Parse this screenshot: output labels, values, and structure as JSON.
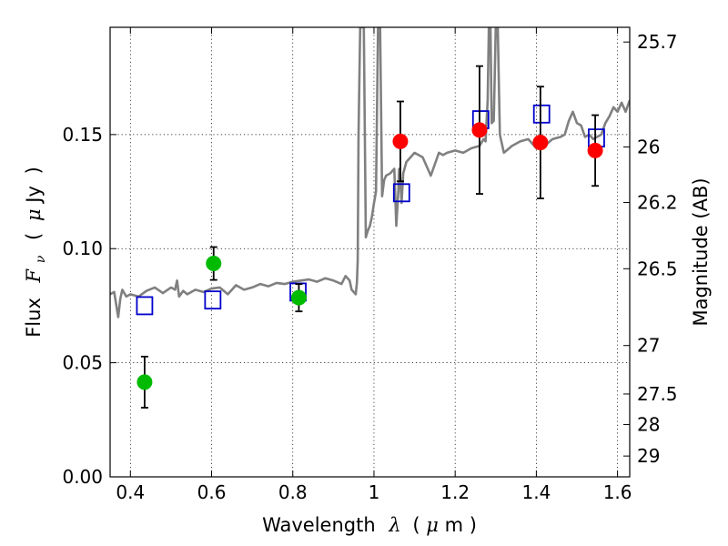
{
  "chart_data": {
    "type": "scatter",
    "title": "",
    "xlabel": {
      "prefix": "Wavelength",
      "lambda": "λ",
      "open_paren": "(",
      "mu": "μ",
      "unit": "m",
      "close_paren": ")"
    },
    "ylabel": {
      "prefix": "Flux",
      "F": "F",
      "nu": "ν",
      "open_paren": "(",
      "mu": "μ",
      "unit": "Jy",
      "close_paren": ")"
    },
    "y2label": "Magnitude (AB)",
    "xlim": [
      0.35,
      1.63
    ],
    "ylim": [
      0.0,
      0.197
    ],
    "grid": true,
    "x_ticks": [
      0.4,
      0.6,
      0.8,
      1.0,
      1.2,
      1.4,
      1.6
    ],
    "x_tick_labels": [
      "0.4",
      "0.6",
      "0.8",
      "1",
      "1.2",
      "1.4",
      "1.6"
    ],
    "y_ticks": [
      0.0,
      0.05,
      0.1,
      0.15
    ],
    "y_tick_labels": [
      "0.00",
      "0.05",
      "0.10",
      "0.15"
    ],
    "y2_ticks_ab": [
      25.7,
      26,
      26.2,
      26.5,
      27,
      27.5,
      28,
      29
    ],
    "y2_tick_labels": [
      "25.7",
      "26",
      "26.2",
      "26.5",
      "27",
      "27.5",
      "28",
      "29"
    ],
    "colors": {
      "spectrum": "#808080",
      "green_points": "#00bb00",
      "red_points": "#ff0000",
      "model_squares": "#0000cc",
      "error_bars": "#000000"
    },
    "series": [
      {
        "marker": "circle",
        "color": "#00bb00",
        "x": [
          0.435,
          0.605,
          0.815
        ],
        "y": [
          0.0415,
          0.0935,
          0.0785
        ],
        "yerr": [
          0.0112,
          0.0072,
          0.006
        ]
      },
      {
        "marker": "circle",
        "color": "#ff0000",
        "x": [
          1.065,
          1.26,
          1.41,
          1.545
        ],
        "y": [
          0.147,
          0.152,
          0.1465,
          0.143
        ],
        "yerr": [
          0.0175,
          0.028,
          0.0245,
          0.0155
        ]
      },
      {
        "marker": "open-square",
        "color": "#0000cc",
        "x": [
          0.435,
          0.603,
          0.813,
          1.068,
          1.263,
          1.413,
          1.548
        ],
        "y": [
          0.075,
          0.0775,
          0.081,
          0.1245,
          0.1565,
          0.159,
          0.1485
        ]
      },
      {
        "type": "line",
        "color": "#808080",
        "x": [
          0.35,
          0.36,
          0.37,
          0.375,
          0.38,
          0.39,
          0.4,
          0.42,
          0.44,
          0.46,
          0.48,
          0.5,
          0.51,
          0.515,
          0.52,
          0.53,
          0.54,
          0.56,
          0.58,
          0.6,
          0.62,
          0.64,
          0.66,
          0.68,
          0.7,
          0.72,
          0.74,
          0.76,
          0.78,
          0.8,
          0.82,
          0.84,
          0.86,
          0.88,
          0.9,
          0.92,
          0.93,
          0.94,
          0.945,
          0.95,
          0.955,
          0.958,
          0.96,
          0.962,
          0.966,
          0.97,
          0.975,
          0.98,
          0.985,
          0.99,
          0.995,
          1.0,
          1.005,
          1.01,
          1.015,
          1.02,
          1.025,
          1.03,
          1.04,
          1.05,
          1.055,
          1.06,
          1.062,
          1.064,
          1.068,
          1.072,
          1.08,
          1.1,
          1.12,
          1.14,
          1.16,
          1.17,
          1.18,
          1.2,
          1.22,
          1.24,
          1.26,
          1.27,
          1.275,
          1.28,
          1.283,
          1.285,
          1.287,
          1.29,
          1.295,
          1.3,
          1.305,
          1.31,
          1.32,
          1.34,
          1.36,
          1.38,
          1.4,
          1.42,
          1.44,
          1.46,
          1.47,
          1.48,
          1.49,
          1.5,
          1.51,
          1.52,
          1.53,
          1.54,
          1.55,
          1.56,
          1.57,
          1.58,
          1.59,
          1.6,
          1.61,
          1.62,
          1.63
        ],
        "y": [
          0.08,
          0.081,
          0.07,
          0.078,
          0.082,
          0.079,
          0.08,
          0.079,
          0.0815,
          0.083,
          0.0805,
          0.083,
          0.082,
          0.086,
          0.079,
          0.0815,
          0.08,
          0.082,
          0.081,
          0.0825,
          0.083,
          0.08,
          0.084,
          0.082,
          0.083,
          0.0845,
          0.0835,
          0.085,
          0.0845,
          0.0855,
          0.086,
          0.0865,
          0.0855,
          0.087,
          0.086,
          0.0845,
          0.088,
          0.086,
          0.082,
          0.081,
          0.08,
          0.085,
          0.095,
          0.15,
          0.197,
          0.197,
          0.197,
          0.105,
          0.108,
          0.11,
          0.114,
          0.12,
          0.125,
          0.197,
          0.197,
          0.123,
          0.13,
          0.132,
          0.133,
          0.135,
          0.11,
          0.125,
          0.135,
          0.133,
          0.12,
          0.133,
          0.138,
          0.142,
          0.14,
          0.132,
          0.142,
          0.141,
          0.142,
          0.143,
          0.142,
          0.144,
          0.145,
          0.148,
          0.147,
          0.165,
          0.197,
          0.197,
          0.197,
          0.155,
          0.156,
          0.197,
          0.197,
          0.15,
          0.142,
          0.145,
          0.147,
          0.148,
          0.144,
          0.145,
          0.148,
          0.149,
          0.15,
          0.156,
          0.16,
          0.155,
          0.154,
          0.149,
          0.15,
          0.148,
          0.149,
          0.15,
          0.155,
          0.158,
          0.162,
          0.16,
          0.164,
          0.16,
          0.165
        ]
      }
    ]
  }
}
